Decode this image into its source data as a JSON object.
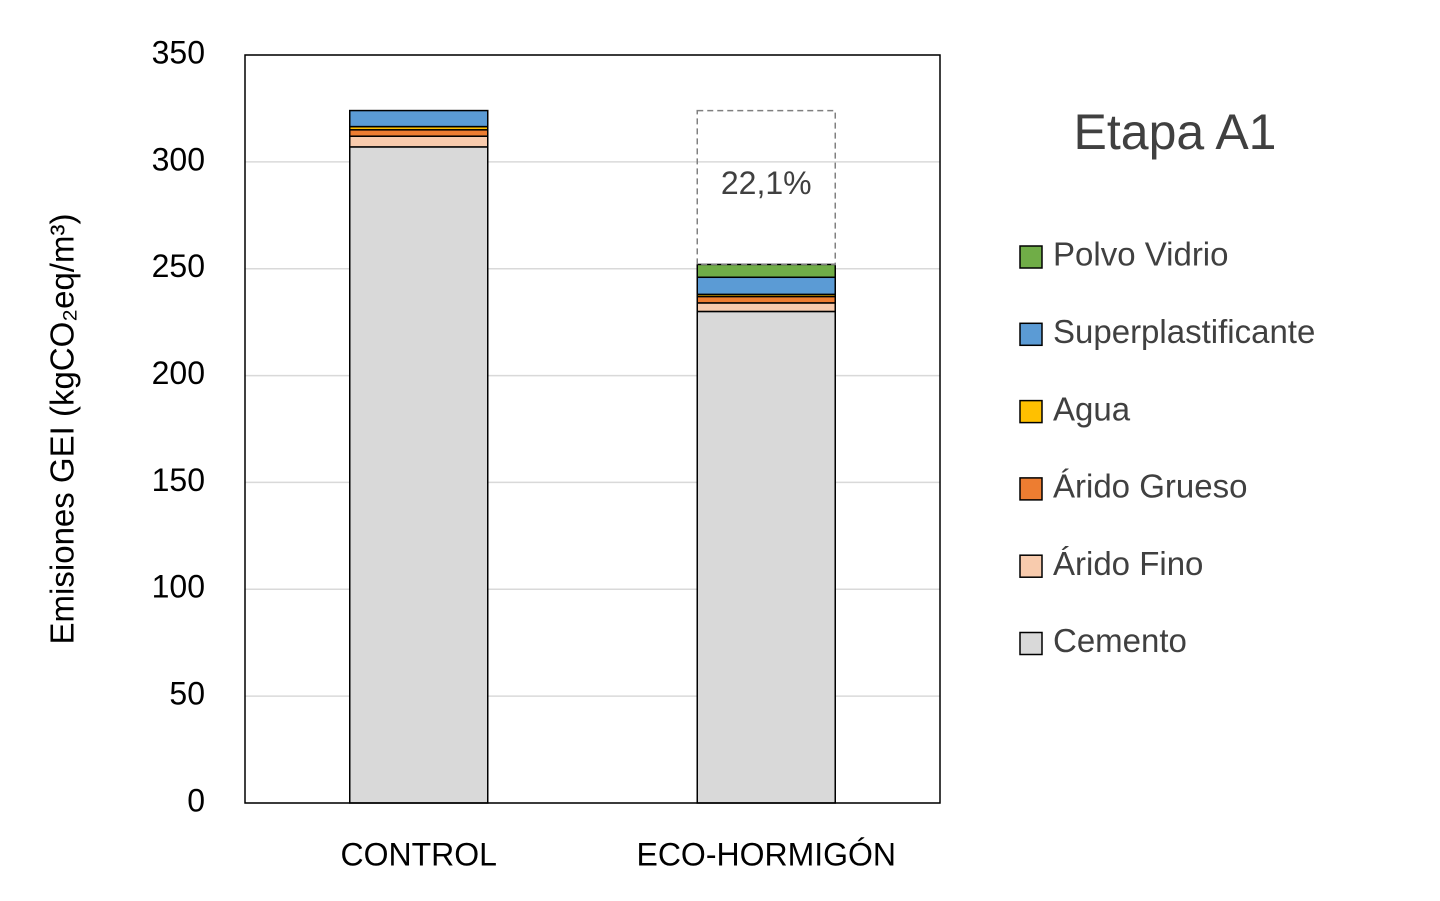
{
  "chart_data": {
    "type": "stacked-bar",
    "y_label": "Emisiones GEI (kgCO₂eq/m³)",
    "legend_title": "Etapa A1",
    "annotation": "22,1%",
    "categories": [
      "CONTROL",
      "ECO-HORMIGÓN"
    ],
    "series": [
      {
        "name": "Cemento",
        "color": "#d9d9d9",
        "values": [
          307,
          230
        ]
      },
      {
        "name": "Árido Fino",
        "color": "#f8cbad",
        "values": [
          5,
          4
        ]
      },
      {
        "name": "Árido Grueso",
        "color": "#ed7d31",
        "values": [
          3,
          3
        ]
      },
      {
        "name": "Agua",
        "color": "#ffc000",
        "values": [
          1.5,
          1
        ]
      },
      {
        "name": "Superplastificante",
        "color": "#5b9bd5",
        "values": [
          7.5,
          8
        ]
      },
      {
        "name": "Polvo Vidrio",
        "color": "#70ad47",
        "values": [
          null,
          6
        ]
      }
    ],
    "ylim": [
      0,
      350
    ],
    "yticks": [
      0,
      50,
      100,
      150,
      200,
      250,
      300,
      350
    ],
    "grid": true,
    "legend": "right"
  }
}
